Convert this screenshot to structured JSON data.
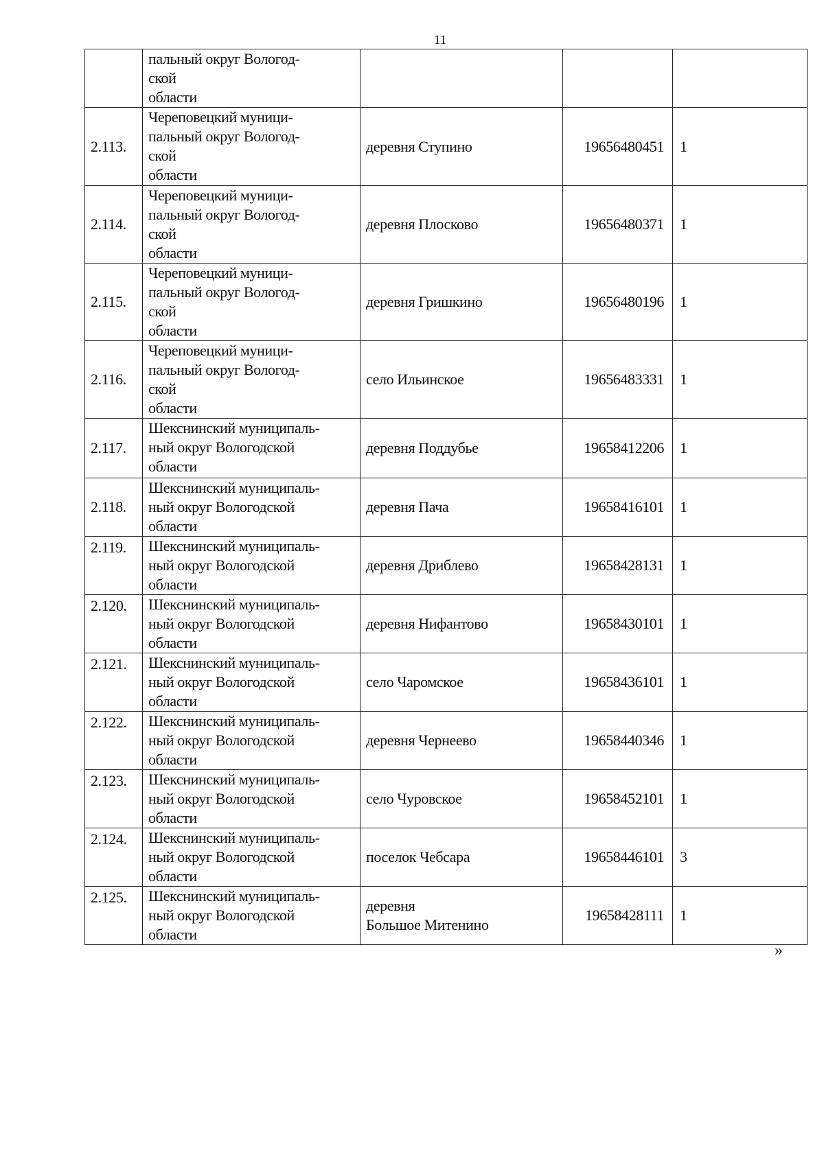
{
  "page_number": "11",
  "closing_mark": "»",
  "table": {
    "rows": [
      {
        "num": "",
        "district": "пальный округ Вологод-\nской\nобласти",
        "settlement": "",
        "code": "",
        "count": ""
      },
      {
        "num": "2.113.",
        "district": "Череповецкий муници-\nпальный округ Вологод-\nской\nобласти",
        "settlement": "деревня Ступино",
        "code": "19656480451",
        "count": "1"
      },
      {
        "num": "2.114.",
        "district": "Череповецкий муници-\nпальный округ Вологод-\nской\nобласти",
        "settlement": "деревня Плосково",
        "code": "19656480371",
        "count": "1"
      },
      {
        "num": "2.115.",
        "district": "Череповецкий муници-\nпальный округ Вологод-\nской\nобласти",
        "settlement": "деревня Гришкино",
        "code": "19656480196",
        "count": "1"
      },
      {
        "num": "2.116.",
        "district": "Череповецкий муници-\nпальный округ Вологод-\nской\nобласти",
        "settlement": "село Ильинское",
        "code": "19656483331",
        "count": "1"
      },
      {
        "num": "2.117.",
        "district": "Шекснинский муниципаль-\nный округ Вологодской\nобласти",
        "settlement": "деревня Поддубье",
        "code": "19658412206",
        "count": "1"
      },
      {
        "num": "2.118.",
        "district": "Шекснинский муниципаль-\nный округ Вологодской\nобласти",
        "settlement": "деревня Пача",
        "code": "19658416101",
        "count": "1"
      },
      {
        "num": "2.119.",
        "district": "Шекснинский муниципаль-\nный округ Вологодской\nобласти",
        "settlement": "деревня Дриблево",
        "code": "19658428131",
        "count": "1"
      },
      {
        "num": "2.120.",
        "district": "Шекснинский муниципаль-\nный округ Вологодской\nобласти",
        "settlement": "деревня Нифантово",
        "code": "19658430101",
        "count": "1"
      },
      {
        "num": "2.121.",
        "district": "Шекснинский муниципаль-\nный округ Вологодской\nобласти",
        "settlement": "село Чаромское",
        "code": "19658436101",
        "count": "1"
      },
      {
        "num": "2.122.",
        "district": "Шекснинский муниципаль-\nный округ Вологодской\nобласти",
        "settlement": "деревня Чернеево",
        "code": "19658440346",
        "count": "1"
      },
      {
        "num": "2.123.",
        "district": "Шекснинский муниципаль-\nный округ Вологодской\nобласти",
        "settlement": "село Чуровское",
        "code": "19658452101",
        "count": "1"
      },
      {
        "num": "2.124.",
        "district": "Шекснинский муниципаль-\nный округ Вологодской\nобласти",
        "settlement": "поселок Чебсара",
        "code": "19658446101",
        "count": "3"
      },
      {
        "num": "2.125.",
        "district": "Шекснинский муниципаль-\nный округ Вологодской\nобласти",
        "settlement": "деревня\nБольшое Митенино",
        "code": "19658428111",
        "count": "1"
      }
    ]
  }
}
